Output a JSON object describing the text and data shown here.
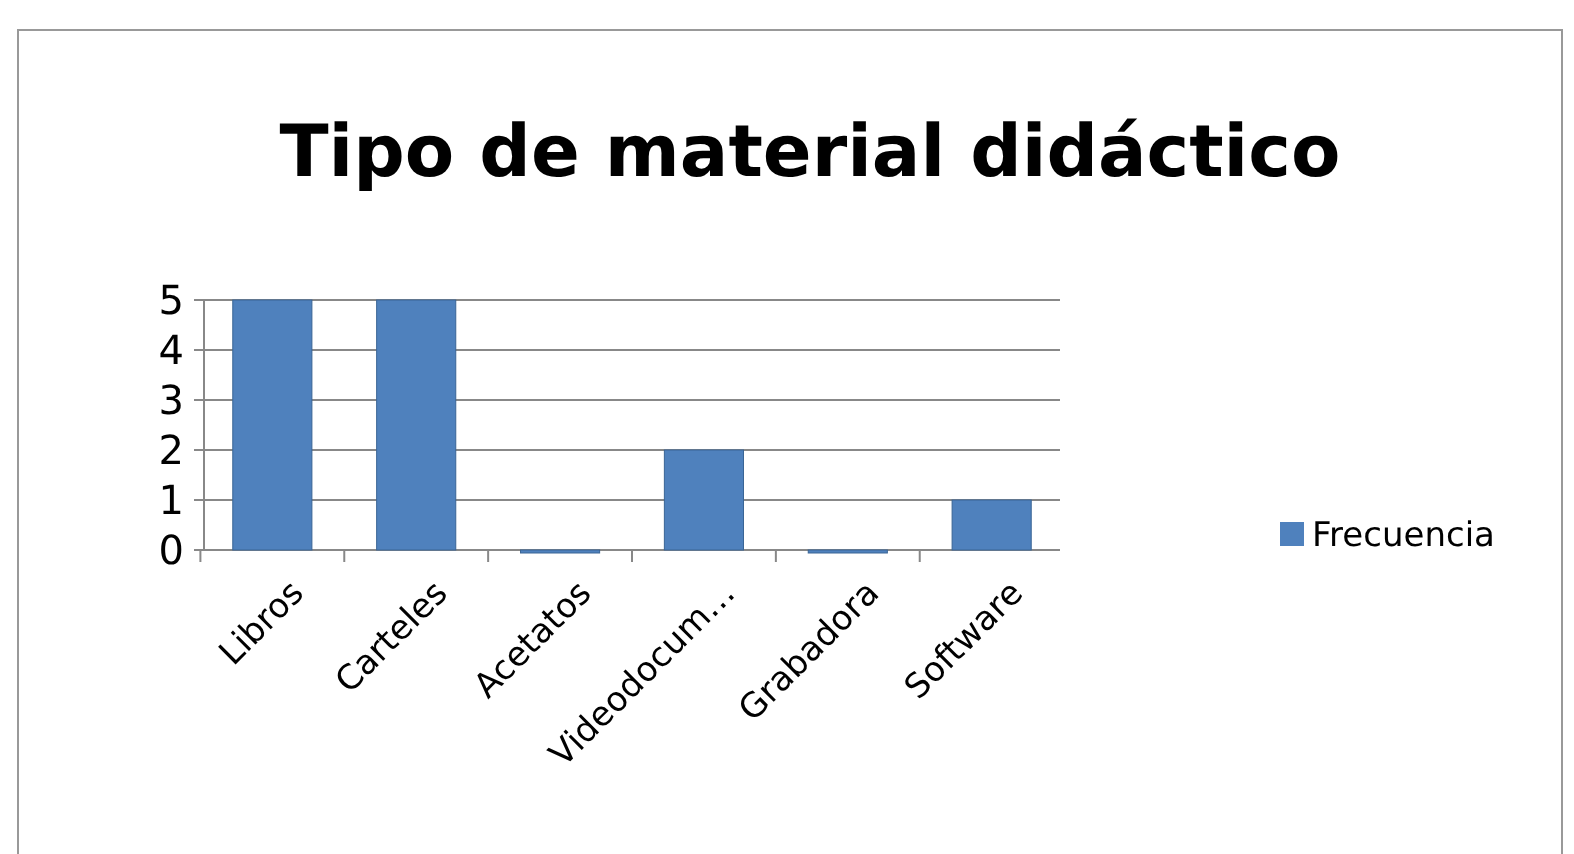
{
  "chart_data": {
    "type": "bar",
    "title": "Tipo de material didáctico",
    "categories": [
      "Libros",
      "Carteles",
      "Acetatos",
      "Videodocum…",
      "Grabadora",
      "Software"
    ],
    "series": [
      {
        "name": "Frecuencia",
        "color": "#4f81bd",
        "values": [
          5,
          5,
          0,
          2,
          0,
          1
        ]
      }
    ],
    "ylim": [
      0,
      5
    ],
    "yticks": [
      0,
      1,
      2,
      3,
      4,
      5
    ],
    "grid": "y",
    "legend": "right"
  }
}
